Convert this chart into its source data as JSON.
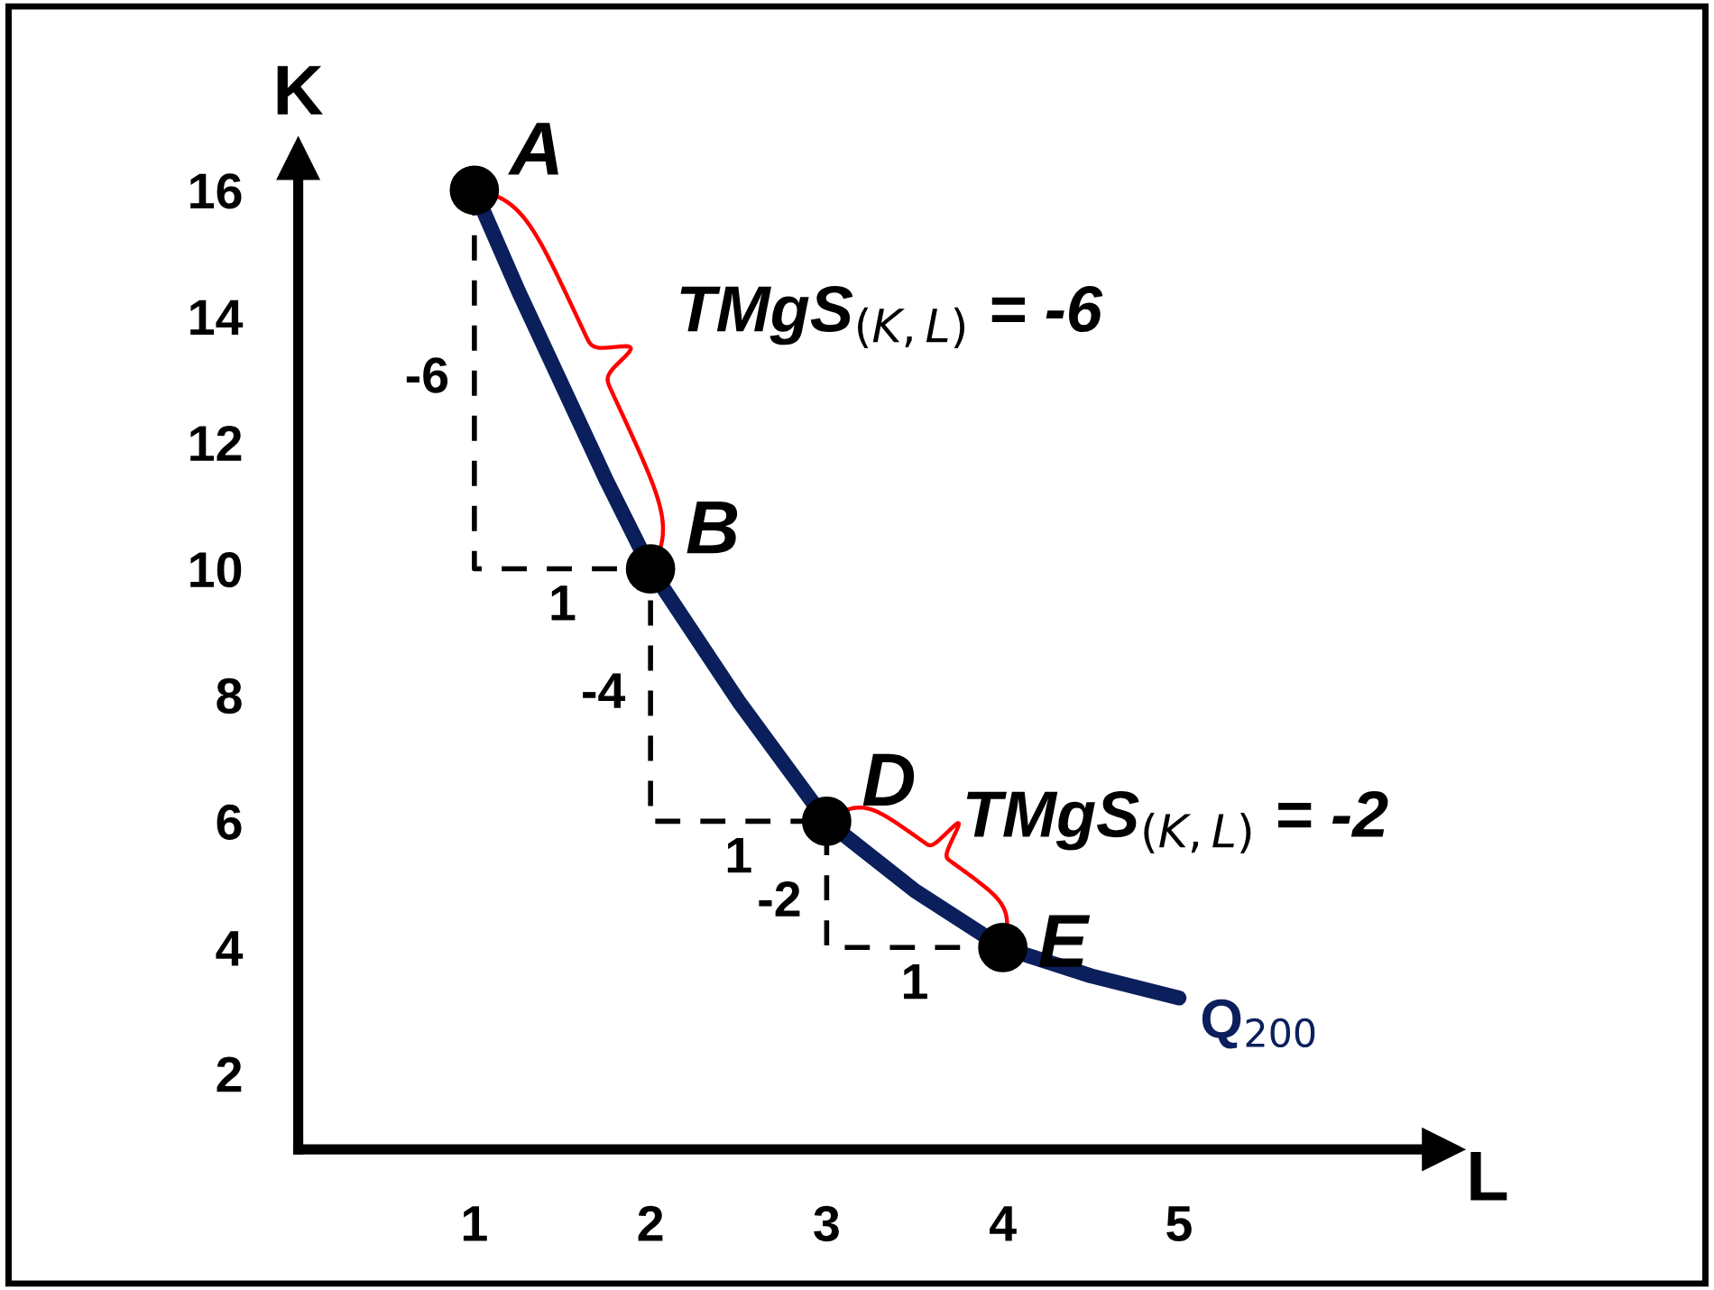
{
  "chart_data": {
    "type": "line",
    "xlabel": "L",
    "ylabel": "K",
    "xlim": [
      0,
      6.5
    ],
    "ylim": [
      0.8,
      16.5
    ],
    "xticks": [
      1,
      2,
      3,
      4,
      5
    ],
    "yticks": [
      2,
      4,
      6,
      8,
      10,
      12,
      14,
      16
    ],
    "grid": false,
    "series": [
      {
        "name": "Q$_{200}$",
        "color": "#0a1f5c",
        "line_style": "solid",
        "marker": "none",
        "x": [
          1,
          1.25,
          1.5,
          1.75,
          2,
          2.5,
          3,
          3.5,
          4,
          4.5,
          5
        ],
        "values": [
          16,
          14.4,
          12.9,
          11.4,
          10,
          7.9,
          6,
          4.9,
          4,
          3.55,
          3.2
        ]
      },
      {
        "color": "#000000",
        "line_style": "dashed",
        "marker": "none",
        "x": [
          1,
          1,
          2,
          2,
          3,
          3,
          4
        ],
        "values": [
          16,
          10,
          10,
          6,
          6,
          4,
          4
        ]
      },
      {
        "type": "scatter",
        "color": "#000000",
        "marker": "circle",
        "x": [
          1,
          2,
          3,
          4
        ],
        "values": [
          16,
          10,
          6,
          4
        ]
      }
    ],
    "annotations": [
      {
        "text": "A",
        "x": 1,
        "y": 16
      },
      {
        "text": "B",
        "x": 2,
        "y": 10
      },
      {
        "text": "D",
        "x": 3,
        "y": 6
      },
      {
        "text": "E",
        "x": 4,
        "y": 4
      },
      {
        "text": "-6",
        "x": 1,
        "y": 13
      },
      {
        "text": "1",
        "x": 1.5,
        "y": 10
      },
      {
        "text": "-4",
        "x": 2,
        "y": 8
      },
      {
        "text": "1",
        "x": 2.5,
        "y": 6
      },
      {
        "text": "-2",
        "x": 3,
        "y": 4.7
      },
      {
        "text": "1",
        "x": 3.5,
        "y": 4
      },
      "TMgS$_{(K,L)}$ = -6",
      "TMgS$_{(K,L)}$ = -2"
    ]
  }
}
